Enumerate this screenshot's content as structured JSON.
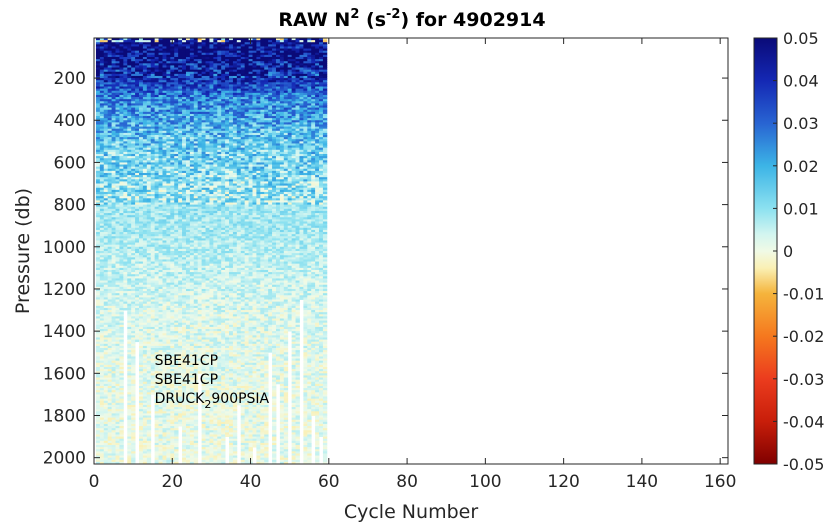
{
  "chart_data": {
    "type": "heatmap",
    "title": {
      "prefix": "RAW N",
      "sup1": "2",
      "mid": " (s",
      "sup2": "-2",
      "suffix": ") for 4902914"
    },
    "xlabel": "Cycle Number",
    "ylabel": "Pressure (db)",
    "xlim": [
      0,
      162
    ],
    "ylim": [
      2030,
      10
    ],
    "y_reversed": true,
    "xticks": [
      0,
      20,
      40,
      60,
      80,
      100,
      120,
      140,
      160
    ],
    "yticks": [
      200,
      400,
      600,
      800,
      1000,
      1200,
      1400,
      1600,
      1800,
      2000
    ],
    "colorbar": {
      "range": [
        -0.05,
        0.05
      ],
      "ticks": [
        0.05,
        0.04,
        0.03,
        0.02,
        0.01,
        0,
        -0.01,
        -0.02,
        -0.03,
        -0.04,
        -0.05
      ],
      "colormap": [
        {
          "v": -0.05,
          "color": "#7f0000"
        },
        {
          "v": -0.04,
          "color": "#c81e0a"
        },
        {
          "v": -0.03,
          "color": "#eb3c1e"
        },
        {
          "v": -0.02,
          "color": "#f5781e"
        },
        {
          "v": -0.01,
          "color": "#f5b43c"
        },
        {
          "v": -0.004,
          "color": "#faf0b4"
        },
        {
          "v": 0,
          "color": "#f0fae6"
        },
        {
          "v": 0.004,
          "color": "#d2f5f0"
        },
        {
          "v": 0.01,
          "color": "#8ce1f0"
        },
        {
          "v": 0.02,
          "color": "#3cb4e6"
        },
        {
          "v": 0.03,
          "color": "#2864d2"
        },
        {
          "v": 0.04,
          "color": "#1428b4"
        },
        {
          "v": 0.05,
          "color": "#0a0a78"
        }
      ]
    },
    "data_extent": {
      "cycles": [
        1,
        59
      ],
      "pressure": [
        10,
        2030
      ]
    },
    "profile": [
      {
        "p": 40,
        "n2": 0.05
      },
      {
        "p": 150,
        "n2": 0.045
      },
      {
        "p": 300,
        "n2": 0.025
      },
      {
        "p": 500,
        "n2": 0.015
      },
      {
        "p": 700,
        "n2": 0.01
      },
      {
        "p": 900,
        "n2": 0.008
      },
      {
        "p": 1100,
        "n2": 0.005
      },
      {
        "p": 1300,
        "n2": 0.003
      },
      {
        "p": 1600,
        "n2": 0.0015
      },
      {
        "p": 2030,
        "n2": 0.001
      }
    ],
    "annotations": [
      {
        "text": "SBE41CP",
        "x": 15.5,
        "y": 1560
      },
      {
        "text": "SBE41CP",
        "x": 15.5,
        "y": 1650
      },
      {
        "base": "DRUCK",
        "sub": "2",
        "rest": "900PSIA",
        "x": 15.5,
        "y": 1740
      }
    ]
  }
}
